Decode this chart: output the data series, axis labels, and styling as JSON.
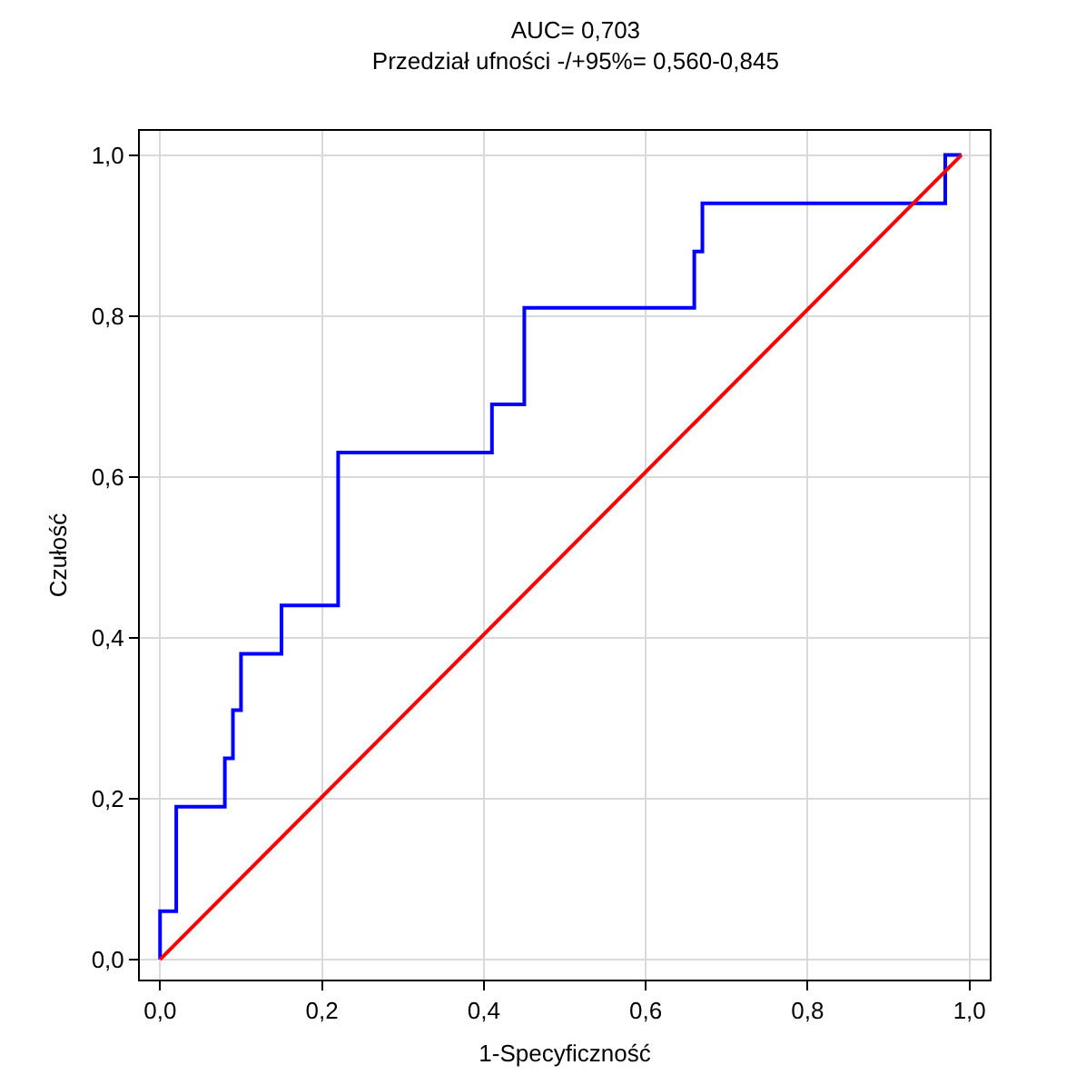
{
  "chart_data": {
    "type": "line",
    "title": "AUC= 0,703",
    "subtitle": "Przedział ufności -/+95%= 0,560-0,845",
    "xlabel": "1-Specyficzność",
    "ylabel": "Czułość",
    "series": [
      {
        "color": "#0000ff",
        "x": [
          0,
          0,
          0.02,
          0.02,
          0.08,
          0.08,
          0.09,
          0.09,
          0.1,
          0.1,
          0.15,
          0.15,
          0.22,
          0.22,
          0.41,
          0.41,
          0.45,
          0.45,
          0.66,
          0.66,
          0.67,
          0.67,
          0.97,
          0.97,
          0.99
        ],
        "values": [
          0,
          0.06,
          0.06,
          0.19,
          0.19,
          0.25,
          0.25,
          0.31,
          0.31,
          0.38,
          0.38,
          0.44,
          0.44,
          0.63,
          0.63,
          0.69,
          0.69,
          0.81,
          0.81,
          0.88,
          0.88,
          0.94,
          0.94,
          1,
          1
        ]
      },
      {
        "color": "#ff0000",
        "x": [
          0,
          0.99
        ],
        "values": [
          0,
          1
        ]
      }
    ],
    "xlim": [
      -0.025,
      1.025
    ],
    "ylim": [
      -0.025,
      1.03
    ],
    "xticks": [
      {
        "value": 0,
        "label": "0,0"
      },
      {
        "value": 0.2,
        "label": "0,2"
      },
      {
        "value": 0.4,
        "label": "0,4"
      },
      {
        "value": 0.6,
        "label": "0,6"
      },
      {
        "value": 0.8,
        "label": "0,8"
      },
      {
        "value": 1,
        "label": "1,0"
      }
    ],
    "yticks": [
      {
        "value": 0,
        "label": "0,0"
      },
      {
        "value": 0.2,
        "label": "0,2"
      },
      {
        "value": 0.4,
        "label": "0,4"
      },
      {
        "value": 0.6,
        "label": "0,6"
      },
      {
        "value": 0.8,
        "label": "0,8"
      },
      {
        "value": 1,
        "label": "1,0"
      }
    ],
    "grid": true,
    "marker": "none",
    "line_style": "solid"
  }
}
